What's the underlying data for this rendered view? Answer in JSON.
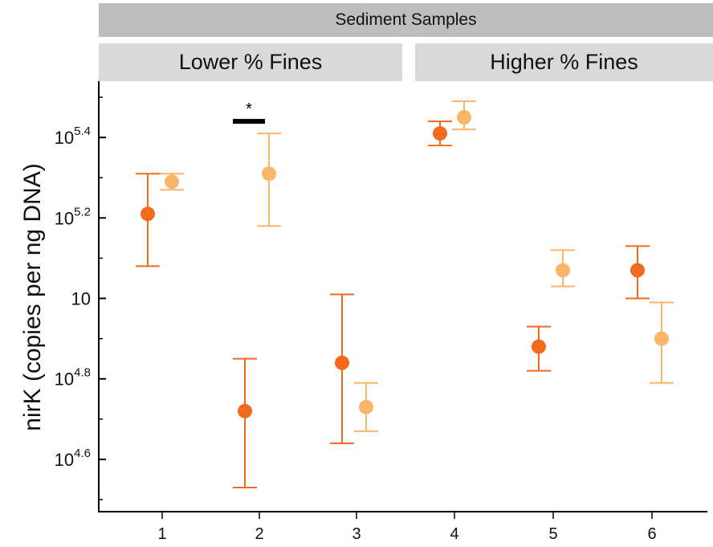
{
  "chart_data": {
    "type": "scatter",
    "title": "",
    "facet_header": "Sediment Samples",
    "facets": [
      "Lower % Fines",
      "Higher % Fines"
    ],
    "xlabel": "",
    "ylabel": "nirK (copies per ng DNA)",
    "y_scale": "log10",
    "ylim_log10": [
      4.47,
      5.54
    ],
    "y_ticks": [
      {
        "exp": "5.4",
        "value_log10": 5.4
      },
      {
        "exp": "5.2",
        "value_log10": 5.2
      },
      {
        "exp": "",
        "value_log10": 5.0
      },
      {
        "exp": "4.8",
        "value_log10": 4.8
      },
      {
        "exp": "4.6",
        "value_log10": 4.6
      }
    ],
    "y_tick_base": "10",
    "categories": [
      "1",
      "2",
      "3",
      "4",
      "5",
      "6"
    ],
    "series": [
      {
        "color": "#f26b1d",
        "points": [
          {
            "x": "1",
            "y_log10": 5.21,
            "low": 5.08,
            "high": 5.31
          },
          {
            "x": "2",
            "y_log10": 4.72,
            "low": 4.53,
            "high": 4.85
          },
          {
            "x": "3",
            "y_log10": 4.84,
            "low": 4.64,
            "high": 5.01
          },
          {
            "x": "4",
            "y_log10": 5.41,
            "low": 5.38,
            "high": 5.44
          },
          {
            "x": "5",
            "y_log10": 4.88,
            "low": 4.82,
            "high": 4.93
          },
          {
            "x": "6",
            "y_log10": 5.07,
            "low": 5.0,
            "high": 5.13
          }
        ]
      },
      {
        "color": "#f9b56a",
        "points": [
          {
            "x": "1",
            "y_log10": 5.29,
            "low": 5.27,
            "high": 5.31
          },
          {
            "x": "2",
            "y_log10": 5.31,
            "low": 5.18,
            "high": 5.41
          },
          {
            "x": "3",
            "y_log10": 4.73,
            "low": 4.67,
            "high": 4.79
          },
          {
            "x": "4",
            "y_log10": 5.45,
            "low": 5.42,
            "high": 5.49
          },
          {
            "x": "5",
            "y_log10": 5.07,
            "low": 5.03,
            "high": 5.12
          },
          {
            "x": "6",
            "y_log10": 4.9,
            "low": 4.79,
            "high": 4.99
          }
        ]
      }
    ],
    "annotations": [
      {
        "text": "*",
        "category": "2",
        "y_log10": 5.44
      }
    ],
    "grid": false,
    "legend": "none"
  }
}
